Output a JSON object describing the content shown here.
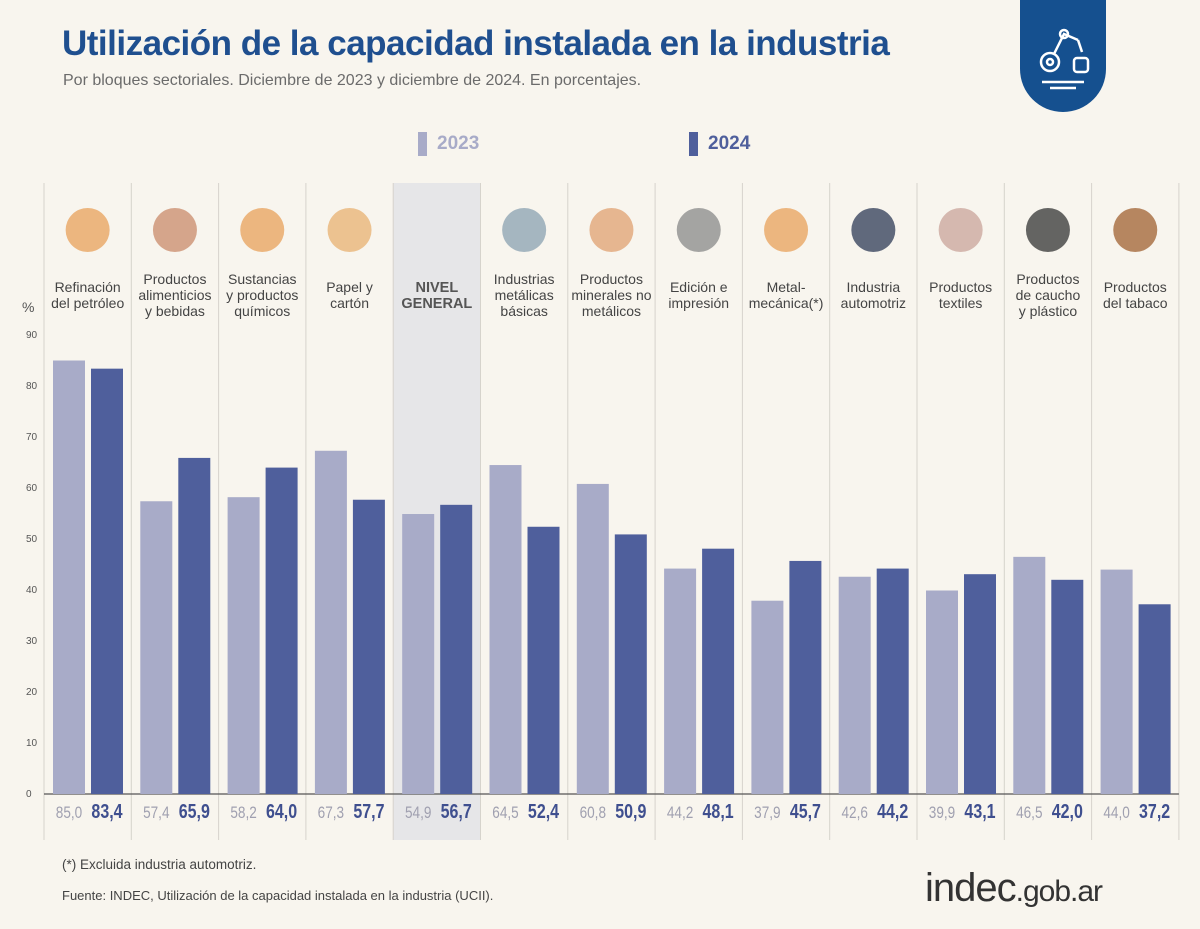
{
  "header": {
    "title": "Utilización de la capacidad instalada en la industria",
    "subtitle": "Por bloques sectoriales. Diciembre de 2023 y diciembre de 2024. En porcentajes.",
    "logo_icon": "industry-robot-arm-icon"
  },
  "colors": {
    "s2023": "#a8abc8",
    "s2024": "#4f5f9c",
    "highlight": "#e6e6e8",
    "title": "#1f4f8f"
  },
  "chart_data": {
    "type": "bar",
    "ylabel": "%",
    "ylim": [
      0,
      90
    ],
    "yticks": [
      0,
      10,
      20,
      30,
      40,
      50,
      60,
      70,
      80,
      90
    ],
    "grid": false,
    "legend_position": "top",
    "categories": [
      [
        "Refinación",
        "del petróleo"
      ],
      [
        "Productos",
        "alimenticios",
        "y bebidas"
      ],
      [
        "Sustancias",
        "y productos",
        "químicos"
      ],
      [
        "Papel y",
        "cartón"
      ],
      [
        "NIVEL",
        "GENERAL"
      ],
      [
        "Industrias",
        "metálicas",
        "básicas"
      ],
      [
        "Productos",
        "minerales no",
        "metálicos"
      ],
      [
        "Edición e",
        "impresión"
      ],
      [
        "Metal-",
        "mecánica(*)"
      ],
      [
        "Industria",
        "automotriz"
      ],
      [
        "Productos",
        "textiles"
      ],
      [
        "Productos",
        "de caucho",
        "y plástico"
      ],
      [
        "Productos",
        "del tabaco"
      ]
    ],
    "highlight_category": "NIVEL GENERAL",
    "series": [
      {
        "name": "2023",
        "values": [
          85.0,
          57.4,
          58.2,
          67.3,
          54.9,
          64.5,
          60.8,
          44.2,
          37.9,
          42.6,
          39.9,
          46.5,
          44.0
        ],
        "labels": [
          "85,0",
          "57,4",
          "58,2",
          "67,3",
          "54,9",
          "64,5",
          "60,8",
          "44,2",
          "37,9",
          "42,6",
          "39,9",
          "46,5",
          "44,0"
        ]
      },
      {
        "name": "2024",
        "values": [
          83.4,
          65.9,
          64.0,
          57.7,
          56.7,
          52.4,
          50.9,
          48.1,
          45.7,
          44.2,
          43.1,
          42.0,
          37.2
        ],
        "labels": [
          "83,4",
          "65,9",
          "64,0",
          "57,7",
          "56,7",
          "52,4",
          "50,9",
          "48,1",
          "45,7",
          "44,2",
          "43,1",
          "42,0",
          "37,2"
        ]
      }
    ]
  },
  "footer": {
    "note": "(*) Excluida industria automotriz.",
    "source": "Fuente: INDEC, Utilización de la capacidad instalada en la industria (UCII).",
    "brand": "indec",
    "brand_suffix": ".gob.ar"
  }
}
